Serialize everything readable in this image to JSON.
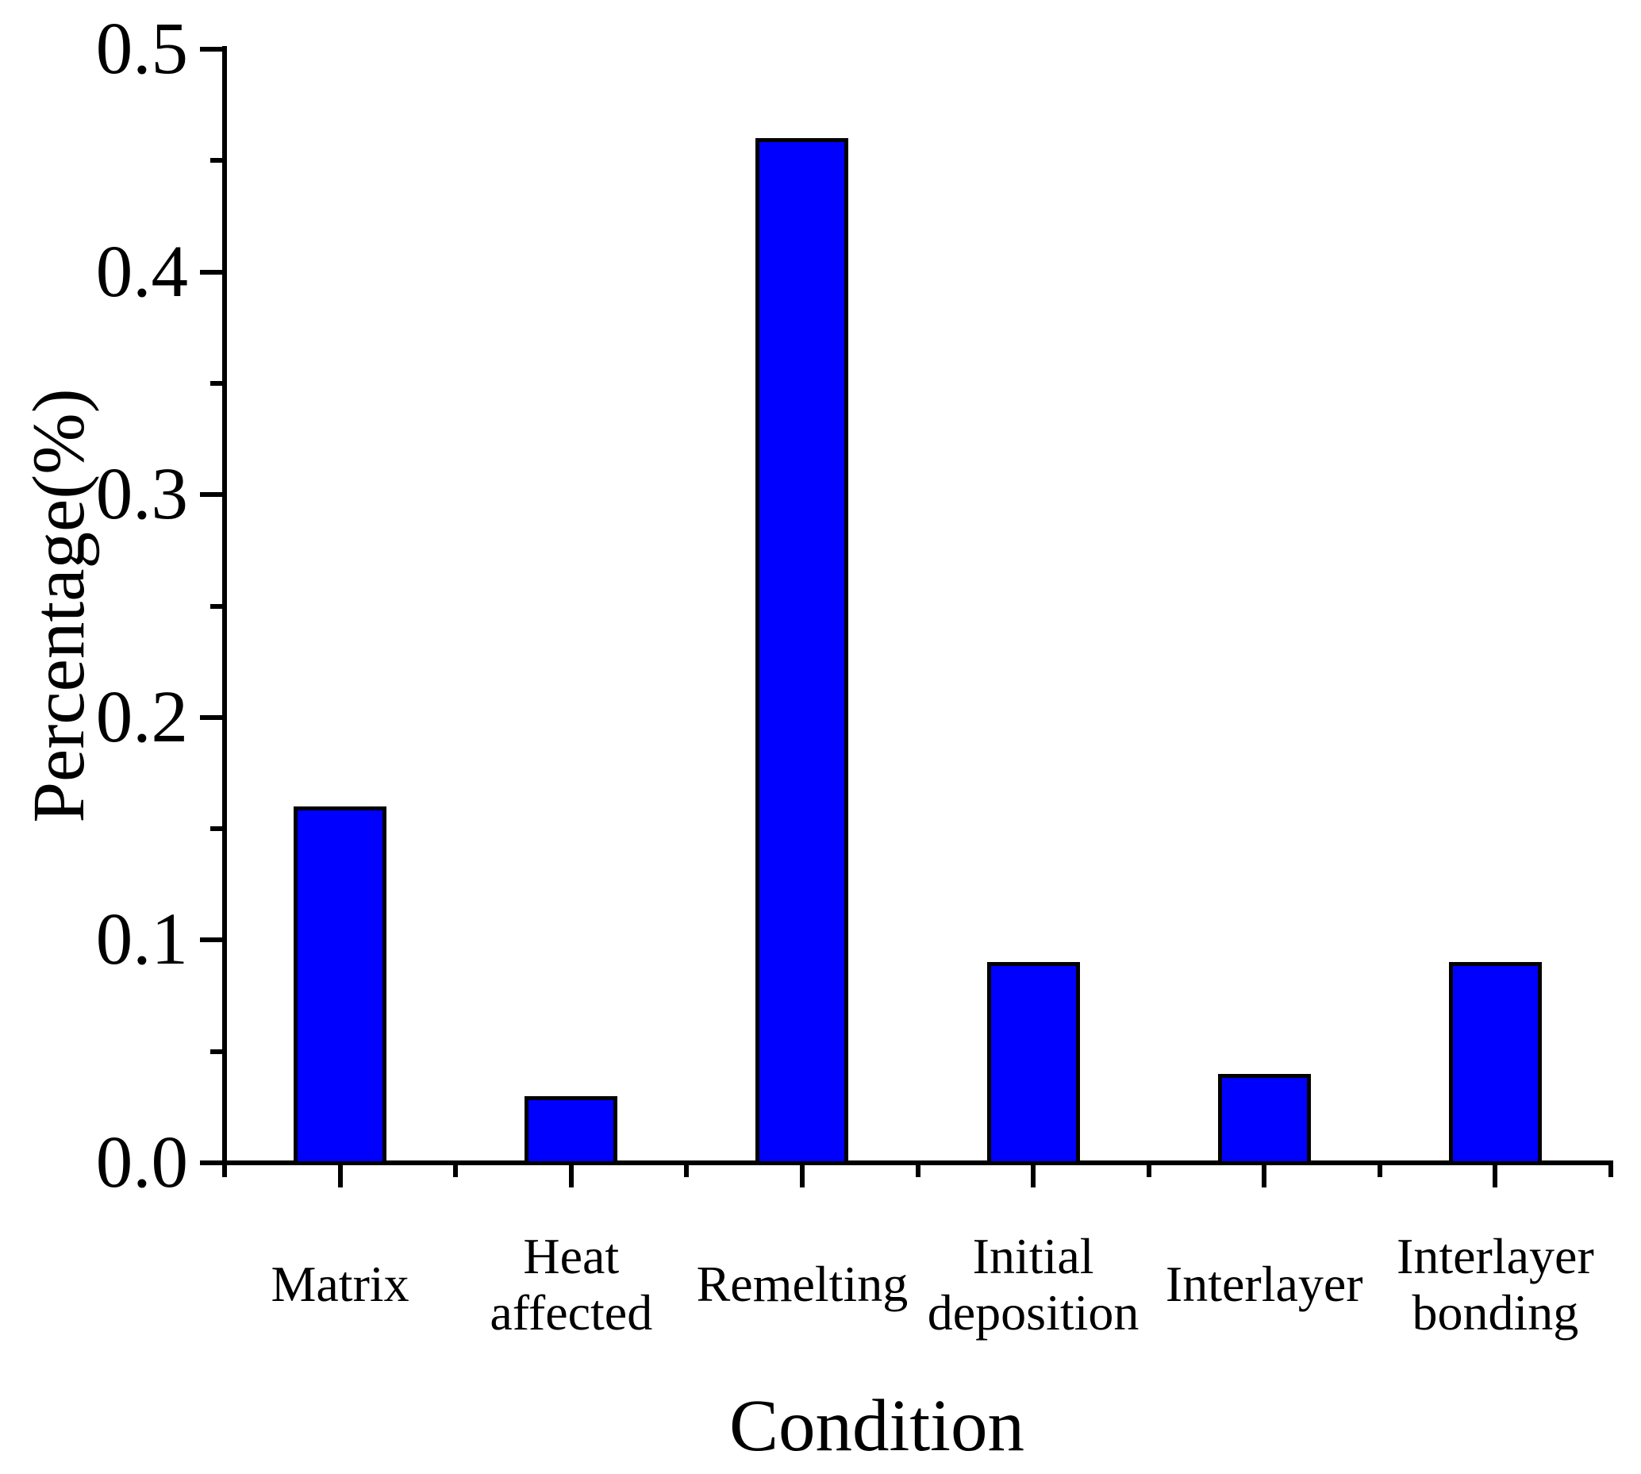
{
  "chart_data": {
    "type": "bar",
    "xlabel": "Condition",
    "ylabel": "Percentage(%)",
    "categories": [
      "Matrix",
      "Heat affected",
      "Remelting",
      "Initial deposition",
      "Interlayer",
      "Interlayer bonding"
    ],
    "category_lines": [
      [
        "Matrix"
      ],
      [
        "Heat",
        "affected"
      ],
      [
        "Remelting"
      ],
      [
        "Initial",
        "deposition"
      ],
      [
        "Interlayer"
      ],
      [
        "Interlayer",
        "bonding"
      ]
    ],
    "values": [
      0.16,
      0.03,
      0.46,
      0.09,
      0.04,
      0.09
    ],
    "ylim": [
      0,
      0.5
    ],
    "yticks": [
      0.0,
      0.1,
      0.2,
      0.3,
      0.4,
      0.5
    ],
    "ytick_labels": [
      "0.0",
      "0.1",
      "0.2",
      "0.3",
      "0.4",
      "0.5"
    ],
    "minor_ytick_values": [
      0.05,
      0.15,
      0.25,
      0.35,
      0.45
    ],
    "grid": false,
    "legend": "none",
    "bar_color": "#0000FF",
    "bar_border_color": "#000000",
    "axis_color": "#000000",
    "background_color": "#FFFFFF"
  }
}
